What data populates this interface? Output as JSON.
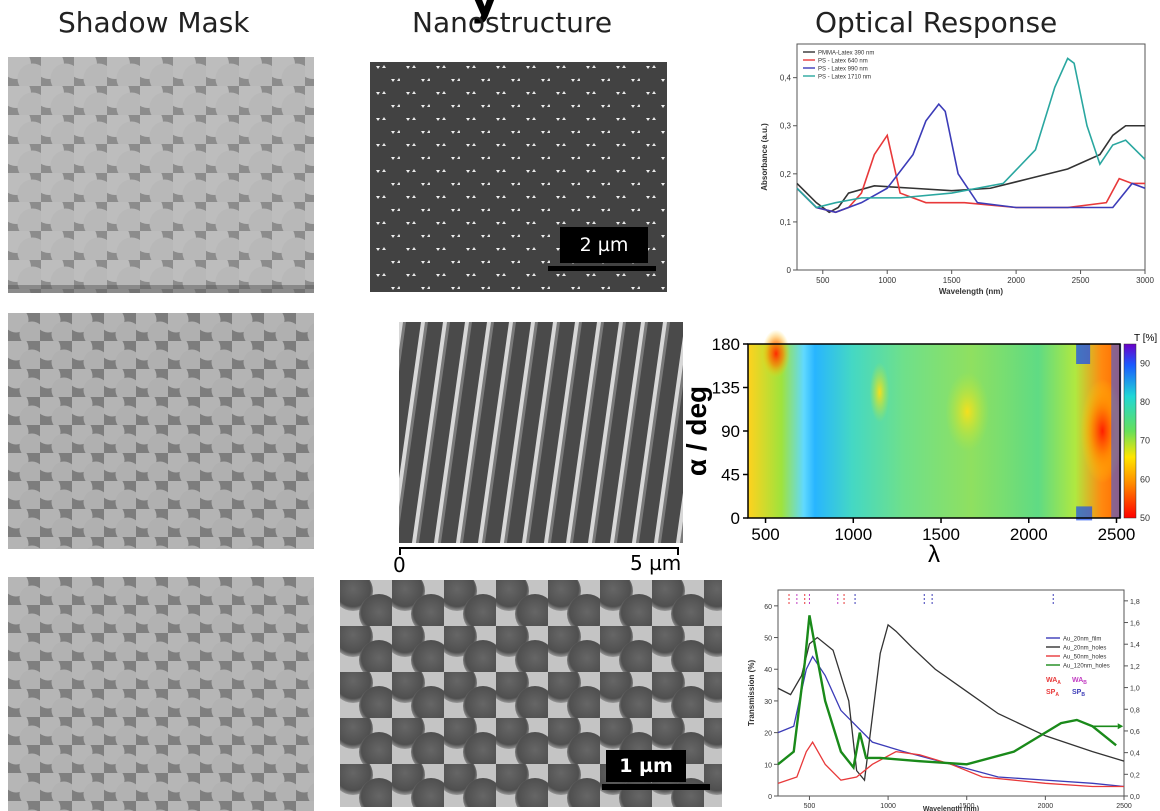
{
  "title_fragment": "y",
  "columns": {
    "shadow_mask": "Shadow Mask",
    "nanostructure": "Nanostructure",
    "optical_response": "Optical Response"
  },
  "scalebars": {
    "row1": "2 µm",
    "row2_start": "0",
    "row2_end": "5 µm",
    "row3": "1 µm"
  },
  "colors": {
    "black": "#333333",
    "red": "#e8393a",
    "blue": "#3c3cb8",
    "cyan": "#2aa7a0",
    "green": "#1a8a1a",
    "magenta": "#c23cc2",
    "purple": "#6a2ad0"
  },
  "chart_data": [
    {
      "type": "line",
      "xlabel": "Wavelength (nm)",
      "ylabel": "Absorbance (a.u.)",
      "xlim": [
        300,
        3000
      ],
      "ylim": [
        0,
        0.47
      ],
      "xticks": [
        "500",
        "1000",
        "1500",
        "2000",
        "2500",
        "3000"
      ],
      "yticks": [
        "0",
        "0,1",
        "0,2",
        "0,3",
        "0,4"
      ],
      "legend_position": "top-left",
      "series": [
        {
          "name": "PMMA-Latex 390 nm",
          "color_key": "black",
          "x": [
            300,
            450,
            550,
            620,
            700,
            900,
            1200,
            1500,
            1800,
            2100,
            2400,
            2650,
            2750,
            2850,
            3000
          ],
          "y": [
            0.18,
            0.14,
            0.12,
            0.13,
            0.16,
            0.175,
            0.17,
            0.165,
            0.17,
            0.19,
            0.21,
            0.24,
            0.28,
            0.3,
            0.3
          ]
        },
        {
          "name": "PS - Latex 640 nm",
          "color_key": "red",
          "x": [
            300,
            450,
            600,
            700,
            800,
            900,
            1000,
            1100,
            1300,
            1600,
            2000,
            2400,
            2700,
            2800,
            2900,
            3000
          ],
          "y": [
            0.17,
            0.13,
            0.12,
            0.13,
            0.16,
            0.24,
            0.28,
            0.16,
            0.14,
            0.14,
            0.13,
            0.13,
            0.14,
            0.19,
            0.18,
            0.18
          ]
        },
        {
          "name": "PS - Latex 990 nm",
          "color_key": "blue",
          "x": [
            300,
            450,
            600,
            800,
            1000,
            1200,
            1300,
            1400,
            1450,
            1550,
            1700,
            2000,
            2400,
            2750,
            2900,
            3000
          ],
          "y": [
            0.17,
            0.13,
            0.12,
            0.14,
            0.17,
            0.24,
            0.31,
            0.345,
            0.33,
            0.2,
            0.14,
            0.13,
            0.13,
            0.13,
            0.18,
            0.17
          ]
        },
        {
          "name": "PS - Latex 1710 nm",
          "color_key": "cyan",
          "x": [
            300,
            450,
            600,
            800,
            1100,
            1500,
            1900,
            2150,
            2300,
            2400,
            2450,
            2550,
            2650,
            2750,
            2850,
            3000
          ],
          "y": [
            0.17,
            0.13,
            0.14,
            0.15,
            0.15,
            0.16,
            0.18,
            0.25,
            0.38,
            0.44,
            0.43,
            0.3,
            0.22,
            0.26,
            0.27,
            0.23
          ]
        }
      ]
    },
    {
      "type": "heatmap",
      "xlabel": "λ",
      "ylabel": "α / deg",
      "xlim": [
        400,
        2520
      ],
      "ylim": [
        0,
        180
      ],
      "xticks": [
        "500",
        "1000",
        "1500",
        "2000",
        "2500"
      ],
      "yticks": [
        "0",
        "45",
        "90",
        "135",
        "180"
      ],
      "colorbar": {
        "label": "T [%]",
        "range": [
          50,
          95
        ],
        "ticks": [
          "50",
          "60",
          "70",
          "80",
          "90"
        ]
      }
    },
    {
      "type": "line",
      "xlabel": "Wavelength (nm)",
      "ylabel": "Transmission (%)",
      "xlim": [
        300,
        2500
      ],
      "ylim": [
        0,
        65
      ],
      "y2lim": [
        0,
        1.9
      ],
      "xticks": [
        "500",
        "1000",
        "1500",
        "2000",
        "2500"
      ],
      "yticks": [
        "0",
        "10",
        "20",
        "30",
        "40",
        "50",
        "60"
      ],
      "y2ticks": [
        "0,0",
        "0,2",
        "0,4",
        "0,6",
        "0,8",
        "1,0",
        "1,2",
        "1,4",
        "1,6",
        "1,8"
      ],
      "legend_position": "right",
      "markers": [
        "WA",
        "WA",
        "SP",
        "SP"
      ],
      "marker_subscripts": [
        "A",
        "B",
        "A",
        "B"
      ],
      "series": [
        {
          "name": "Au_20nm_film",
          "color_key": "blue",
          "x": [
            300,
            400,
            480,
            520,
            600,
            700,
            900,
            1100,
            1400,
            1700,
            2000,
            2300,
            2500
          ],
          "y": [
            20,
            22,
            40,
            44,
            38,
            27,
            17,
            14,
            10,
            6,
            5,
            4,
            3
          ]
        },
        {
          "name": "Au_20nm_holes",
          "color_key": "black",
          "x": [
            300,
            380,
            450,
            500,
            550,
            650,
            750,
            800,
            850,
            900,
            950,
            1000,
            1050,
            1150,
            1300,
            1500,
            1700,
            2000,
            2300,
            2500
          ],
          "y": [
            34,
            32,
            38,
            48,
            50,
            46,
            30,
            8,
            5,
            25,
            45,
            54,
            52,
            47,
            40,
            33,
            26,
            19,
            14,
            11
          ]
        },
        {
          "name": "Au_50nm_holes",
          "color_key": "red",
          "x": [
            300,
            420,
            480,
            520,
            600,
            700,
            800,
            900,
            1050,
            1200,
            1400,
            1600,
            2000,
            2300,
            2500
          ],
          "y": [
            4,
            6,
            14,
            17,
            10,
            5,
            6,
            10,
            14,
            13,
            10,
            6,
            4,
            3,
            3
          ]
        },
        {
          "name": "Au_120nm_holes",
          "color_key": "green",
          "x": [
            300,
            400,
            470,
            500,
            540,
            600,
            700,
            780,
            820,
            860,
            950,
            1200,
            1500,
            1800,
            2000,
            2100,
            2200,
            2300,
            2400,
            2450
          ],
          "y": [
            10,
            14,
            42,
            57,
            46,
            30,
            14,
            9,
            20,
            12,
            12,
            11,
            10,
            14,
            20,
            23,
            24,
            22,
            18,
            16
          ]
        }
      ]
    }
  ]
}
